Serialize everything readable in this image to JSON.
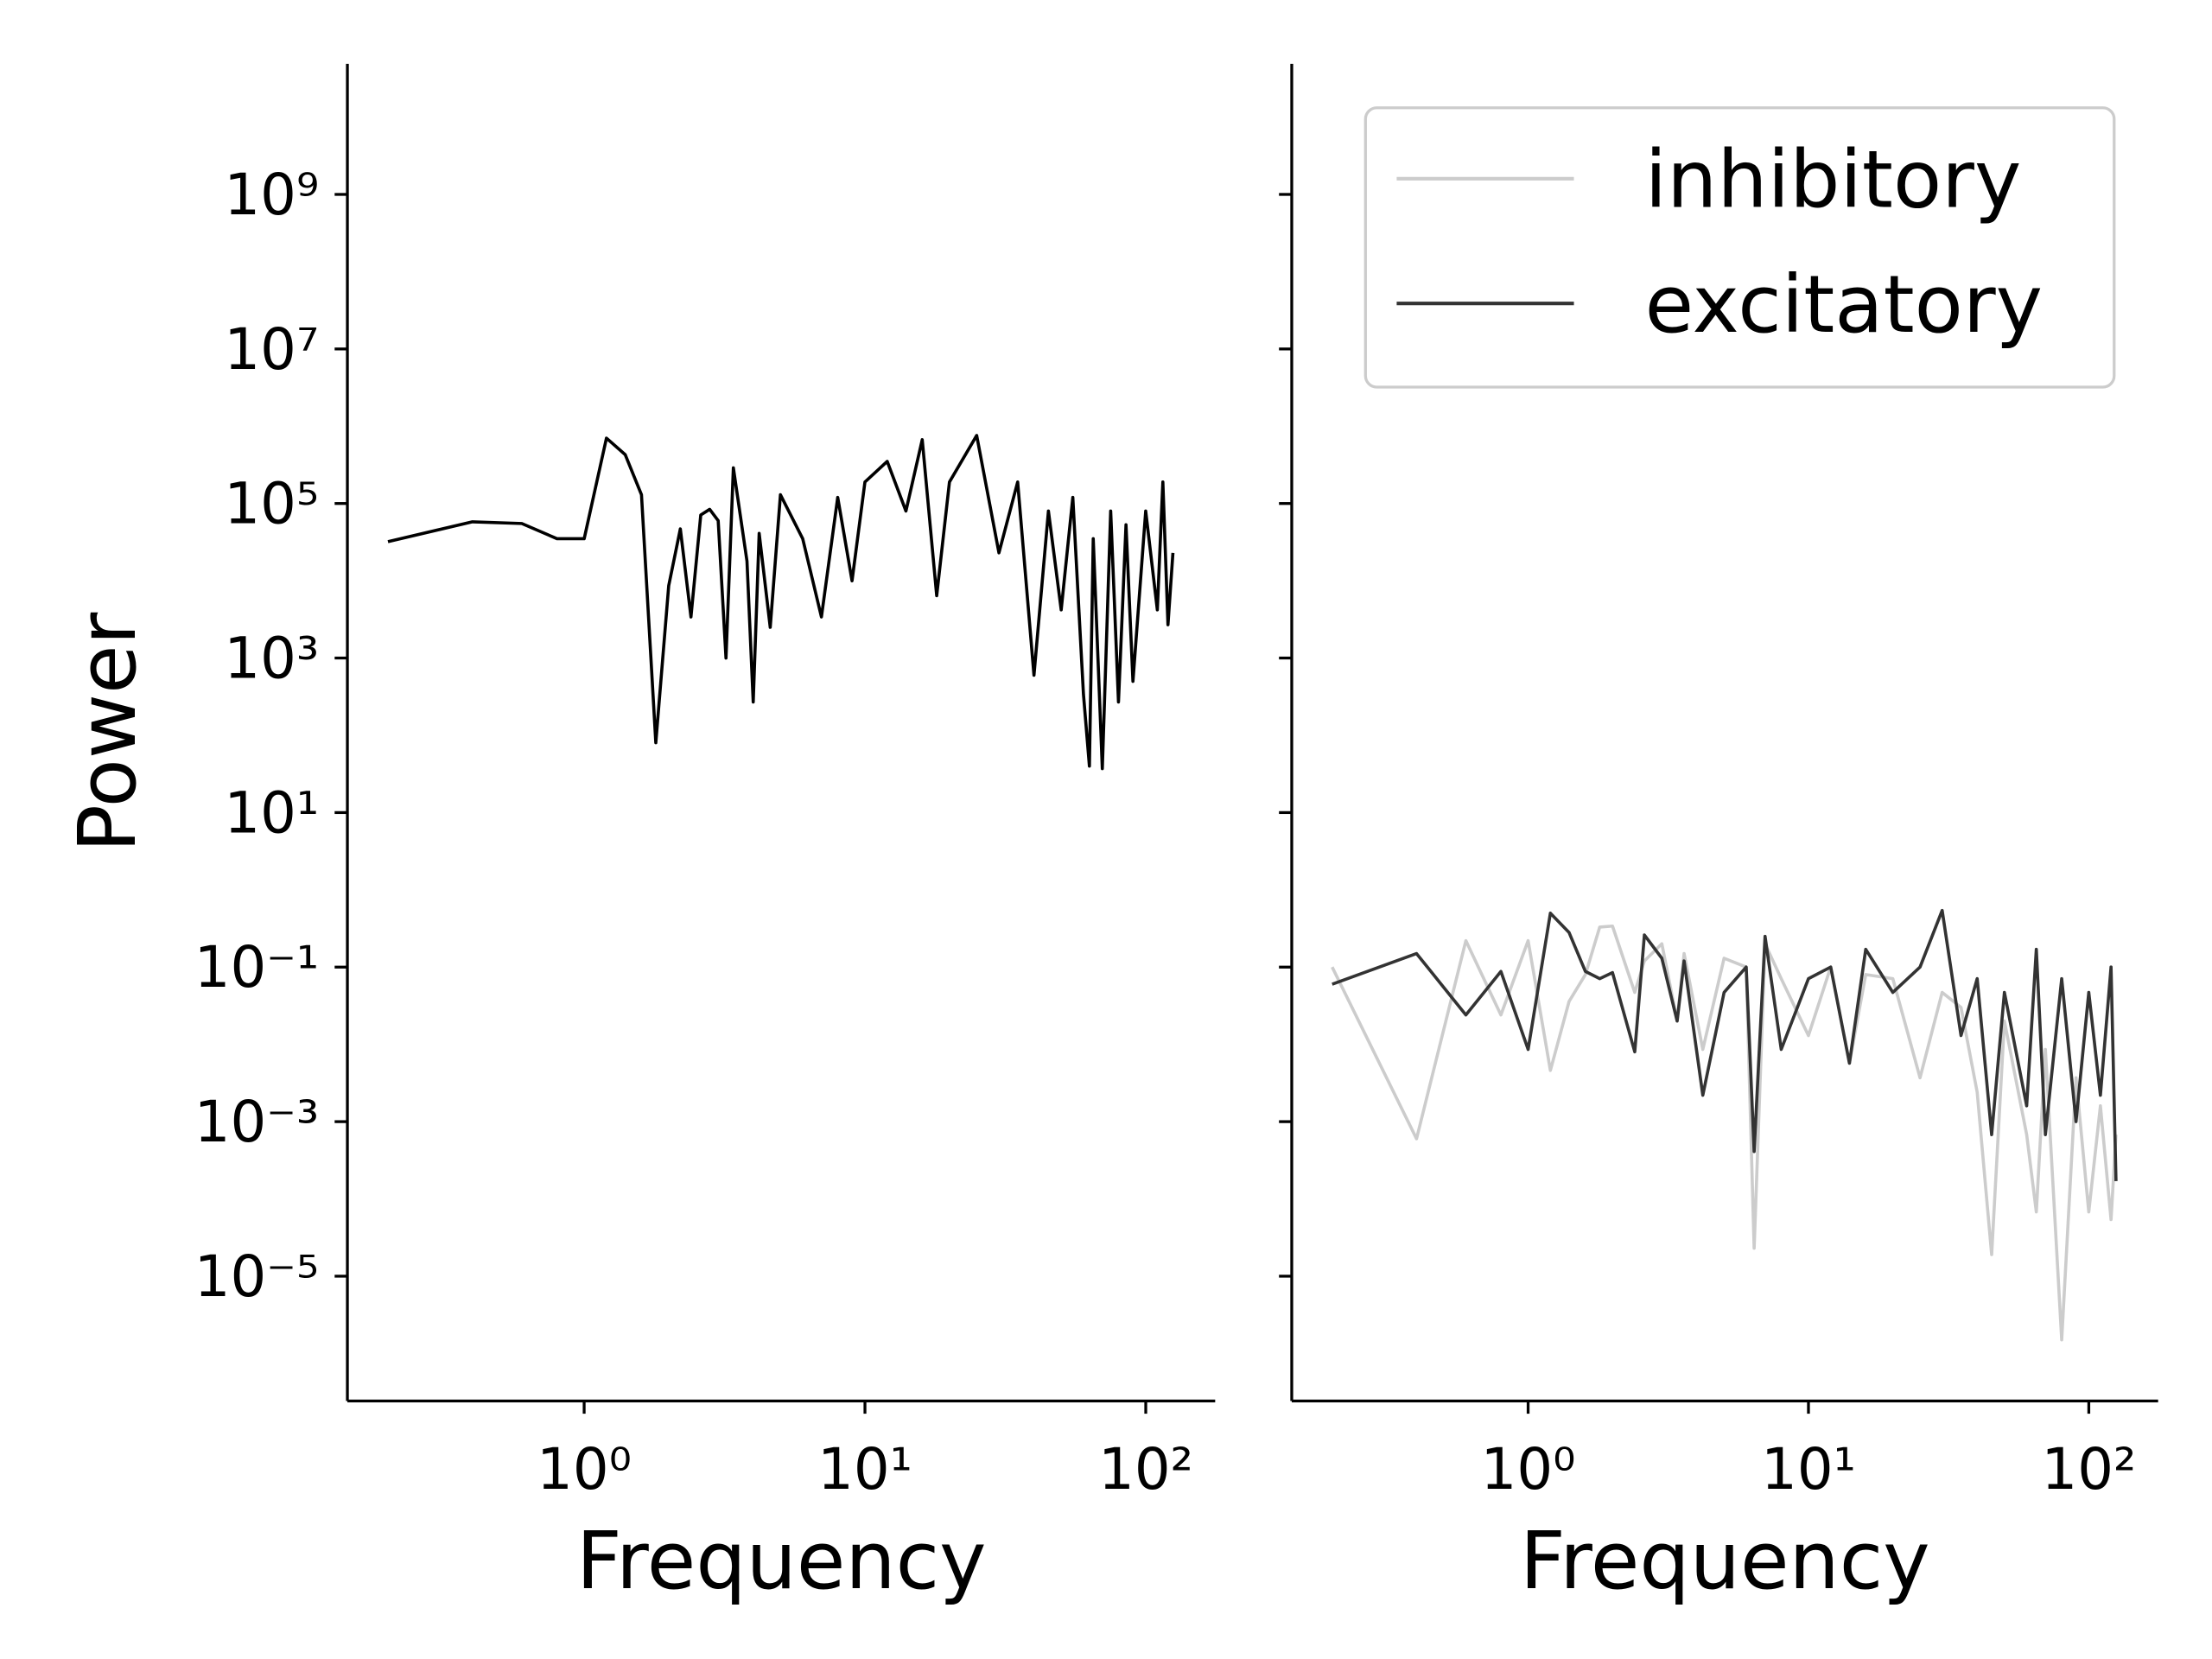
{
  "chart_data": [
    {
      "type": "line",
      "xlabel": "Frequency",
      "ylabel": "Power",
      "log_x": true,
      "log_y": true,
      "xlim": [
        0.1435,
        176.7
      ],
      "ylim": [
        2.43e-07,
        49000000000.0
      ],
      "xticks": [
        {
          "value": 1,
          "label": "10⁰"
        },
        {
          "value": 10,
          "label": "10¹"
        },
        {
          "value": 100,
          "label": "10²"
        }
      ],
      "yticks": [
        {
          "value": 1e-05,
          "label": "10⁻⁵"
        },
        {
          "value": 0.001,
          "label": "10⁻³"
        },
        {
          "value": 0.1,
          "label": "10⁻¹"
        },
        {
          "value": 10,
          "label": "10¹"
        },
        {
          "value": 1000,
          "label": "10³"
        },
        {
          "value": 100000,
          "label": "10⁵"
        },
        {
          "value": 10000000,
          "label": "10⁷"
        },
        {
          "value": 1000000000,
          "label": "10⁹"
        }
      ],
      "x": [
        0.2,
        0.4,
        0.6,
        0.8,
        1.0,
        1.2,
        1.4,
        1.6,
        1.8,
        2.0,
        2.2,
        2.4,
        2.6,
        2.8,
        3.0,
        3.2,
        3.4,
        3.8,
        4.0,
        4.2,
        4.6,
        5,
        6,
        7,
        8,
        9,
        10,
        12,
        14,
        16,
        18,
        20,
        25,
        30,
        35,
        40,
        45,
        50,
        55,
        60,
        63,
        65,
        70,
        75,
        80,
        85,
        90,
        100,
        110,
        115,
        120,
        125
      ],
      "series": [
        {
          "color": "#000000",
          "values": [
            32000,
            58000,
            55000,
            35000,
            35000,
            700000,
            430000,
            130000,
            80,
            8600,
            47000,
            3400,
            71000,
            84000,
            60000,
            1000,
            290000,
            18000,
            270,
            41000,
            2500,
            130000,
            35000,
            3400,
            120000,
            10000,
            190000,
            350000,
            80000,
            670000,
            6400,
            190000,
            760000,
            23000,
            190000,
            600,
            80000,
            4200,
            120000,
            340,
            40,
            35000,
            37,
            80000,
            270,
            53000,
            500,
            80000,
            4200,
            190000,
            2700,
            23000
          ]
        }
      ]
    },
    {
      "type": "line",
      "xlabel": "Frequency",
      "log_x": true,
      "log_y": true,
      "legend": "upper right",
      "xlim": [
        0.1435,
        176.7
      ],
      "ylim": [
        2.43e-07,
        49000000000.0
      ],
      "xticks": [
        {
          "value": 1,
          "label": "10⁰"
        },
        {
          "value": 10,
          "label": "10¹"
        },
        {
          "value": 100,
          "label": "10²"
        }
      ],
      "yticks": [
        1e-05,
        0.001,
        0.1,
        10,
        1000,
        100000,
        10000000,
        1000000000
      ],
      "x": [
        0.2,
        0.4,
        0.6,
        0.8,
        1.0,
        1.2,
        1.4,
        1.6,
        1.8,
        2.0,
        2.4,
        2.6,
        3.0,
        3.4,
        3.6,
        4.2,
        5,
        6,
        6.4,
        7,
        8,
        10,
        12,
        14,
        16,
        20,
        25,
        30,
        35,
        40,
        45,
        50,
        60,
        65,
        70,
        80,
        90,
        100,
        110,
        120,
        125
      ],
      "series": [
        {
          "name": "inhibitory",
          "color": "#cccccc",
          "values": [
            0.1,
            0.0006,
            0.22,
            0.024,
            0.22,
            0.0046,
            0.036,
            0.08,
            0.33,
            0.34,
            0.047,
            0.12,
            0.2,
            0.02,
            0.15,
            0.0086,
            0.13,
            0.1,
            2.3e-05,
            0.2,
            0.071,
            0.013,
            0.1,
            0.0057,
            0.08,
            0.071,
            0.0037,
            0.047,
            0.03,
            0.0024,
            1.9e-05,
            0.02,
            0.00068,
            6.8e-05,
            0.0086,
            1.5e-06,
            0.0037,
            6.8e-05,
            0.0016,
            5.4e-05,
            0.00068
          ]
        },
        {
          "name": "excitatory",
          "color": "#333333",
          "values": [
            0.06,
            0.15,
            0.024,
            0.088,
            0.0086,
            0.5,
            0.28,
            0.088,
            0.071,
            0.085,
            0.008,
            0.26,
            0.13,
            0.02,
            0.12,
            0.0022,
            0.047,
            0.1,
            0.00041,
            0.25,
            0.0086,
            0.071,
            0.1,
            0.0057,
            0.17,
            0.047,
            0.1,
            0.54,
            0.013,
            0.071,
            0.00068,
            0.047,
            0.0016,
            0.17,
            0.00068,
            0.071,
            0.001,
            0.047,
            0.0022,
            0.1,
            0.00017
          ]
        }
      ]
    }
  ]
}
